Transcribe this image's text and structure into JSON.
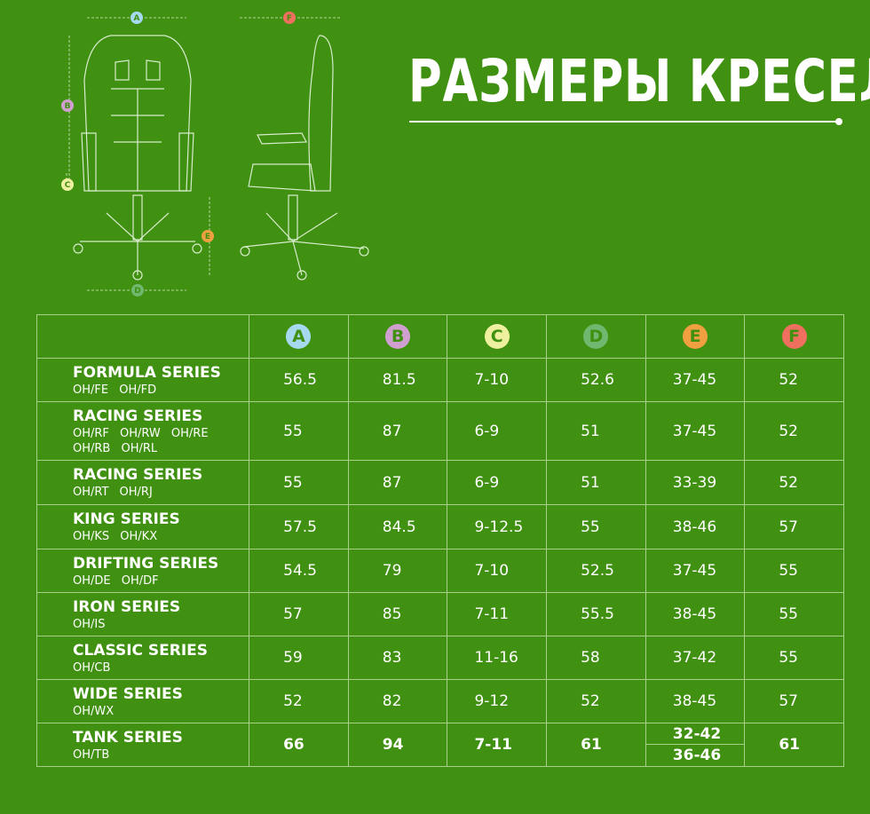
{
  "title": "РАЗМЕРЫ КРЕСЕЛ",
  "dimension_labels": [
    {
      "letter": "A",
      "color": "#a6d8ee"
    },
    {
      "letter": "B",
      "color": "#cfa0cf"
    },
    {
      "letter": "C",
      "color": "#eef0a0"
    },
    {
      "letter": "D",
      "color": "#6fb86f"
    },
    {
      "letter": "E",
      "color": "#f0a040"
    },
    {
      "letter": "F",
      "color": "#f07060"
    }
  ],
  "rows": [
    {
      "series": "FORMULA SERIES",
      "models": "OH/FE OH/FD",
      "values": [
        "56.5",
        "81.5",
        "7-10",
        "52.6",
        "37-45",
        "52"
      ]
    },
    {
      "series": "RACING SERIES",
      "models": "OH/RF OH/RW OH/RE OH/RB OH/RL",
      "values": [
        "55",
        "87",
        "6-9",
        "51",
        "37-45",
        "52"
      ]
    },
    {
      "series": "RACING SERIES",
      "models": "OH/RT OH/RJ",
      "values": [
        "55",
        "87",
        "6-9",
        "51",
        "33-39",
        "52"
      ]
    },
    {
      "series": "KING SERIES",
      "models": "OH/KS OH/KX",
      "values": [
        "57.5",
        "84.5",
        "9-12.5",
        "55",
        "38-46",
        "57"
      ]
    },
    {
      "series": "DRIFTING SERIES",
      "models": "OH/DE OH/DF",
      "values": [
        "54.5",
        "79",
        "7-10",
        "52.5",
        "37-45",
        "55"
      ]
    },
    {
      "series": "IRON SERIES",
      "models": "OH/IS",
      "values": [
        "57",
        "85",
        "7-11",
        "55.5",
        "38-45",
        "55"
      ]
    },
    {
      "series": "CLASSIC SERIES",
      "models": "OH/CB",
      "values": [
        "59",
        "83",
        "11-16",
        "58",
        "37-42",
        "55"
      ]
    },
    {
      "series": "WIDE SERIES",
      "models": "OH/WX",
      "values": [
        "52",
        "82",
        "9-12",
        "52",
        "38-45",
        "57"
      ]
    },
    {
      "series": "TANK SERIES",
      "models": "OH/TB",
      "values": [
        "66",
        "94",
        "7-11",
        "61",
        "32-42",
        "61"
      ],
      "e_second": "36-46"
    }
  ]
}
